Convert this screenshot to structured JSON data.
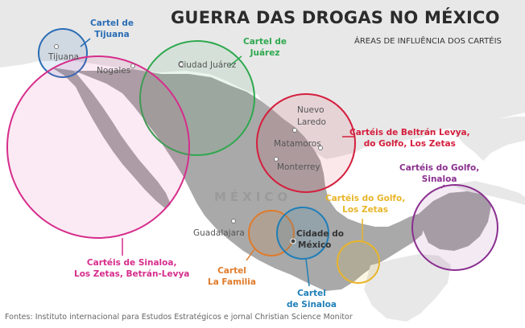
{
  "title": "GUERRA DAS DROGAS NO MÉXICO",
  "subtitle": "ÁREAS DE INFLUÊNCIA DOS CARTÉIS",
  "country_label": "MÉXICO",
  "cities": [
    "Tijuana",
    "Nogales",
    "Ciudad Juárez",
    "Nuevo",
    "Laredo",
    "Matamoros",
    "Monterrey",
    "Guadalajara",
    "Cidade do",
    "México"
  ],
  "labels": {
    "tijuana": [
      "Cartel de",
      "Tijuana"
    ],
    "juarez": [
      "Cartel de",
      "Juárez"
    ],
    "northeast": [
      "Cartéis de Beltrán Levya,",
      "do Golfo, Los Zetas"
    ],
    "yucatan": [
      "Cartéis do Golfo,",
      "Sinaloa"
    ],
    "south": [
      "Cartéis do Golfo,",
      "Los Zetas"
    ],
    "sinaloa_big": [
      "Cartéis de Sinaloa,",
      "Los Zetas, Betrán-Levya"
    ],
    "familia": [
      "Cartel",
      "La Familia"
    ],
    "sinaloa_small": [
      "Cartel",
      "de Sinaloa"
    ]
  },
  "colors": {
    "tijuana": "#2a6db5",
    "juarez": "#2fa84f",
    "northeast": "#d41f3d",
    "yucatan": "#8a2f8f",
    "south": "#e8b52a",
    "sinaloa": "#d62d8c",
    "familia": "#e07b2a",
    "sinaloa_small": "#1f7fb8"
  },
  "source": "Fontes: Instituto internacional para Estudos Estratégicos e jornal Christian Science Monitor"
}
